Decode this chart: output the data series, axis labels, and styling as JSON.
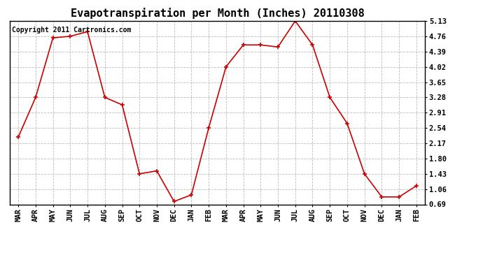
{
  "title": "Evapotranspiration per Month (Inches) 20110308",
  "copyright_text": "Copyright 2011 Cartronics.com",
  "x_labels": [
    "MAR",
    "APR",
    "MAY",
    "JUN",
    "JUL",
    "AUG",
    "SEP",
    "OCT",
    "NOV",
    "DEC",
    "JAN",
    "FEB",
    "MAR",
    "APR",
    "MAY",
    "JUN",
    "JUL",
    "AUG",
    "SEP",
    "OCT",
    "NOV",
    "DEC",
    "JAN",
    "FEB"
  ],
  "y_values": [
    2.32,
    3.28,
    4.72,
    4.76,
    4.87,
    3.28,
    3.1,
    1.43,
    1.5,
    0.76,
    0.92,
    2.54,
    4.02,
    4.55,
    4.55,
    4.5,
    5.13,
    4.55,
    3.28,
    2.65,
    1.43,
    0.87,
    0.87,
    1.14
  ],
  "y_ticks": [
    0.69,
    1.06,
    1.43,
    1.8,
    2.17,
    2.54,
    2.91,
    3.28,
    3.65,
    4.02,
    4.39,
    4.76,
    5.13
  ],
  "y_min": 0.69,
  "y_max": 5.13,
  "line_color": "#cc0000",
  "marker": "+",
  "marker_size": 5,
  "marker_linewidth": 1.2,
  "line_width": 1.2,
  "bg_color": "#ffffff",
  "grid_color": "#aaaaaa",
  "title_fontsize": 11,
  "tick_fontsize": 7.5,
  "copyright_fontsize": 7
}
